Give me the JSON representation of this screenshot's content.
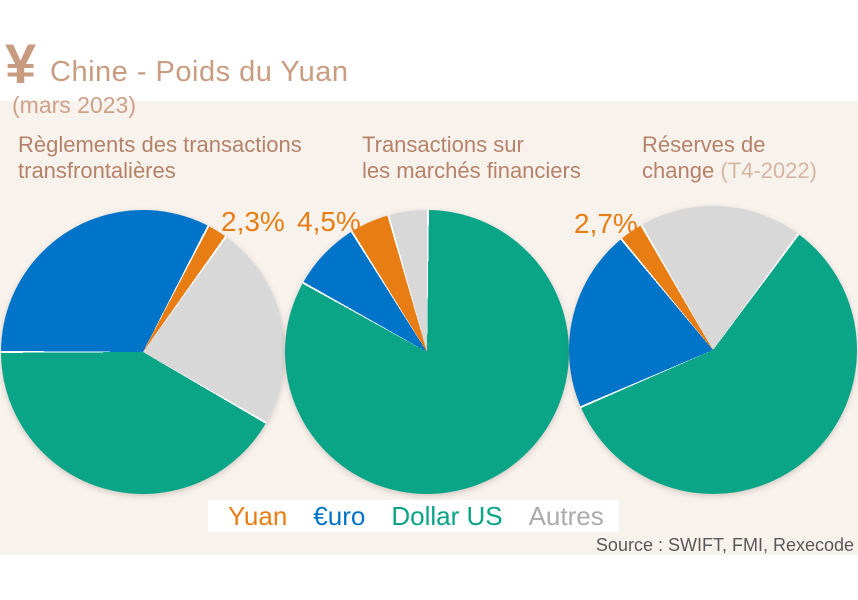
{
  "page": {
    "background": "#ffffff",
    "band_background": "#f8f2ed"
  },
  "header": {
    "currency_icon": "¥",
    "title": "Chine - Poids du Yuan",
    "subtitle": "(mars 2023)",
    "accent_color": "#c99c81"
  },
  "legend": {
    "items": [
      {
        "label": "Yuan",
        "color": "#e87d14"
      },
      {
        "label": "€uro",
        "color": "#0074c8"
      },
      {
        "label": "Dollar US",
        "color": "#0aa487"
      },
      {
        "label": "Autres",
        "color": "#ababab"
      }
    ]
  },
  "source": {
    "text": "Source : SWIFT, FMI, Rexecode"
  },
  "slice_colors": {
    "Yuan": "#e87d14",
    "€uro": "#0074c8",
    "Dollar US": "#0aa487",
    "Autres": "#d8d8d8"
  },
  "chart_data": [
    {
      "type": "pie",
      "title": "Règlements des transactions\ntransfrontalières",
      "title_suffix": "",
      "callout": "2,3%",
      "callout_series": "Yuan",
      "start_deg": 27,
      "slices": [
        {
          "label": "Yuan",
          "pct": 2.3
        },
        {
          "label": "Autres",
          "pct": 23.4
        },
        {
          "label": "Dollar US",
          "pct": 41.7
        },
        {
          "label": "€uro",
          "pct": 32.6
        }
      ]
    },
    {
      "type": "pie",
      "title": "Transactions sur\nles marchés financiers",
      "title_suffix": "",
      "callout": "4,5%",
      "callout_series": "Yuan",
      "start_deg": 0,
      "slices": [
        {
          "label": "Dollar US",
          "pct": 83.0
        },
        {
          "label": "€uro",
          "pct": 8.0
        },
        {
          "label": "Yuan",
          "pct": 4.5
        },
        {
          "label": "Autres",
          "pct": 4.5
        }
      ]
    },
    {
      "type": "pie",
      "title": "Réserves de\nchange",
      "title_suffix": "(T4-2022)",
      "callout": "2,7%",
      "callout_series": "Yuan",
      "start_deg": 36,
      "slices": [
        {
          "label": "Dollar US",
          "pct": 58.4
        },
        {
          "label": "€uro",
          "pct": 20.5
        },
        {
          "label": "Yuan",
          "pct": 2.7
        },
        {
          "label": "Autres",
          "pct": 18.4
        }
      ]
    }
  ]
}
